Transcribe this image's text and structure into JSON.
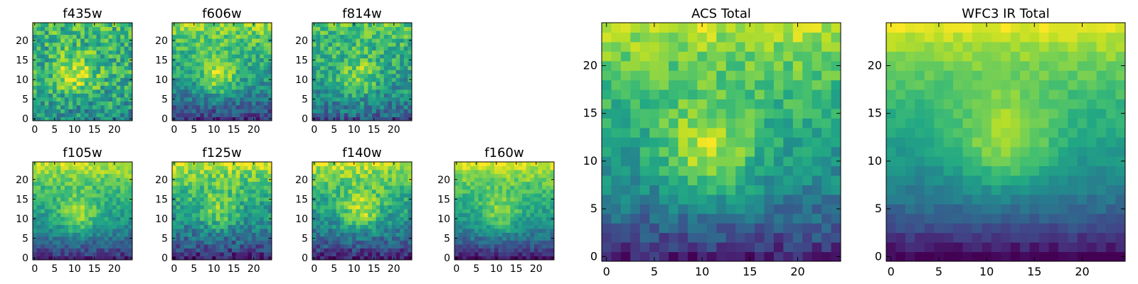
{
  "figure": {
    "colormap": "viridis"
  },
  "chart_data": [
    {
      "type": "heatmap",
      "title": "f435w",
      "x_ticks": [
        0,
        5,
        10,
        15,
        20
      ],
      "y_ticks": [
        0,
        5,
        10,
        15,
        20
      ],
      "xlim": [
        -0.5,
        24.5
      ],
      "ylim": [
        -0.5,
        24.5
      ],
      "grid": false,
      "description_values": {
        "background_level": 0.62,
        "noise_level": 0.42,
        "center_peak": 0.35,
        "center_x": 10.5,
        "center_y": 11.5,
        "top_brightening": 0.05,
        "bottom_darkening": 0.15
      }
    },
    {
      "type": "heatmap",
      "title": "f606w",
      "x_ticks": [
        0,
        5,
        10,
        15,
        20
      ],
      "y_ticks": [
        0,
        5,
        10,
        15,
        20
      ],
      "xlim": [
        -0.5,
        24.5
      ],
      "ylim": [
        -0.5,
        24.5
      ],
      "grid": false,
      "description_values": {
        "background_level": 0.55,
        "noise_level": 0.3,
        "center_peak": 0.35,
        "center_x": 11,
        "center_y": 11,
        "top_brightening": 0.3,
        "bottom_darkening": 0.4
      }
    },
    {
      "type": "heatmap",
      "title": "f814w",
      "x_ticks": [
        0,
        5,
        10,
        15,
        20
      ],
      "y_ticks": [
        0,
        5,
        10,
        15,
        20
      ],
      "xlim": [
        -0.5,
        24.5
      ],
      "ylim": [
        -0.5,
        24.5
      ],
      "grid": false,
      "description_values": {
        "background_level": 0.58,
        "noise_level": 0.35,
        "center_peak": 0.25,
        "center_x": 11,
        "center_y": 11,
        "top_brightening": 0.15,
        "bottom_darkening": 0.3
      }
    },
    {
      "type": "heatmap",
      "title": "f105w",
      "x_ticks": [
        0,
        5,
        10,
        15,
        20
      ],
      "y_ticks": [
        0,
        5,
        10,
        15,
        20
      ],
      "xlim": [
        -0.5,
        24.5
      ],
      "ylim": [
        -0.5,
        24.5
      ],
      "grid": false,
      "description_values": {
        "background_level": 0.55,
        "noise_level": 0.22,
        "center_peak": 0.3,
        "center_x": 11,
        "center_y": 11,
        "top_brightening": 0.35,
        "bottom_darkening": 0.45
      }
    },
    {
      "type": "heatmap",
      "title": "f125w",
      "x_ticks": [
        0,
        5,
        10,
        15,
        20
      ],
      "y_ticks": [
        0,
        5,
        10,
        15,
        20
      ],
      "xlim": [
        -0.5,
        24.5
      ],
      "ylim": [
        -0.5,
        24.5
      ],
      "grid": false,
      "description_values": {
        "background_level": 0.52,
        "noise_level": 0.3,
        "center_peak": 0.25,
        "center_x": 11,
        "center_y": 12,
        "top_brightening": 0.4,
        "bottom_darkening": 0.45
      }
    },
    {
      "type": "heatmap",
      "title": "f140w",
      "x_ticks": [
        0,
        5,
        10,
        15,
        20
      ],
      "y_ticks": [
        0,
        5,
        10,
        15,
        20
      ],
      "xlim": [
        -0.5,
        24.5
      ],
      "ylim": [
        -0.5,
        24.5
      ],
      "grid": false,
      "description_values": {
        "background_level": 0.52,
        "noise_level": 0.28,
        "center_peak": 0.35,
        "center_x": 12,
        "center_y": 12,
        "top_brightening": 0.4,
        "bottom_darkening": 0.45
      }
    },
    {
      "type": "heatmap",
      "title": "f160w",
      "x_ticks": [
        0,
        5,
        10,
        15,
        20
      ],
      "y_ticks": [
        0,
        5,
        10,
        15,
        20
      ],
      "xlim": [
        -0.5,
        24.5
      ],
      "ylim": [
        -0.5,
        24.5
      ],
      "grid": false,
      "description_values": {
        "background_level": 0.55,
        "noise_level": 0.2,
        "center_peak": 0.25,
        "center_x": 11,
        "center_y": 11,
        "top_brightening": 0.4,
        "bottom_darkening": 0.5
      }
    },
    {
      "type": "heatmap",
      "title": "ACS Total",
      "x_ticks": [
        0,
        5,
        10,
        15,
        20
      ],
      "y_ticks": [
        0,
        5,
        10,
        15,
        20
      ],
      "xlim": [
        -0.5,
        24.5
      ],
      "ylim": [
        -0.5,
        24.5
      ],
      "grid": false,
      "description_values": {
        "background_level": 0.55,
        "noise_level": 0.22,
        "center_peak": 0.35,
        "center_x": 10.5,
        "center_y": 11,
        "top_brightening": 0.35,
        "bottom_darkening": 0.45
      }
    },
    {
      "type": "heatmap",
      "title": "WFC3 IR Total",
      "x_ticks": [
        0,
        5,
        10,
        15,
        20
      ],
      "y_ticks": [
        0,
        5,
        10,
        15,
        20
      ],
      "xlim": [
        -0.5,
        24.5
      ],
      "ylim": [
        -0.5,
        24.5
      ],
      "grid": false,
      "description_values": {
        "background_level": 0.55,
        "noise_level": 0.1,
        "center_peak": 0.3,
        "center_x": 12,
        "center_y": 12,
        "top_brightening": 0.4,
        "bottom_darkening": 0.55
      }
    }
  ]
}
